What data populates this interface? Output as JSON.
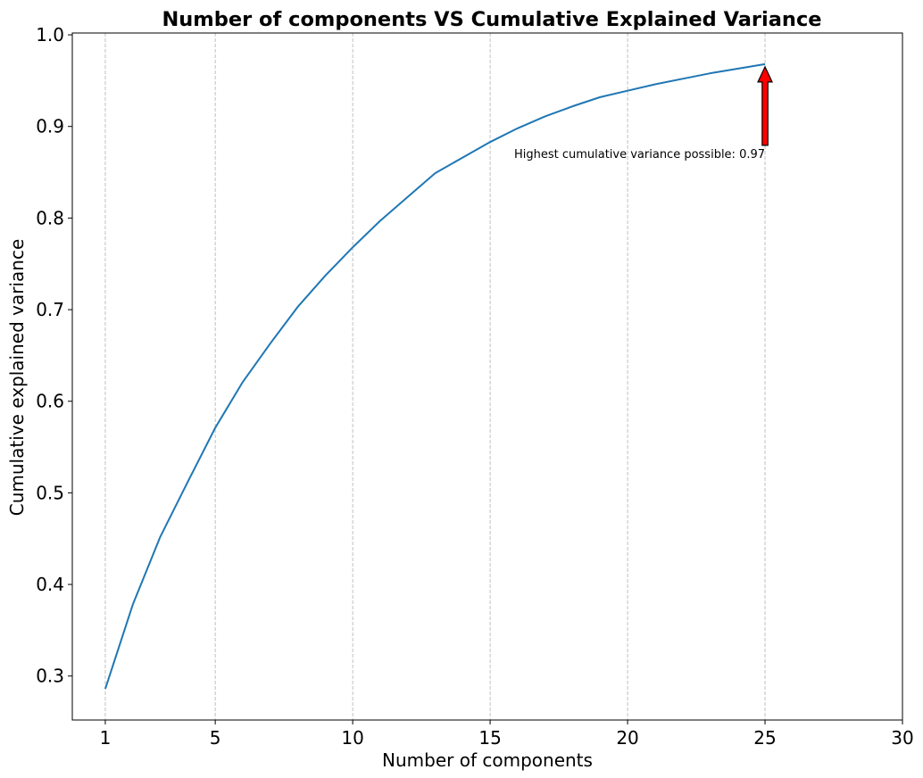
{
  "chart_data": {
    "type": "line",
    "title": "Number of components VS Cumulative Explained Variance",
    "xlabel": "Number of components",
    "ylabel": "Cumulative explained variance",
    "xlim": [
      -0.2,
      30
    ],
    "ylim": [
      0.252,
      1.002
    ],
    "xticks": [
      1,
      5,
      10,
      15,
      20,
      25,
      30
    ],
    "xtick_labels": [
      "1",
      "5",
      "10",
      "15",
      "20",
      "25",
      "30"
    ],
    "yticks": [
      0.3,
      0.4,
      0.5,
      0.6,
      0.7,
      0.8,
      0.9,
      1.0
    ],
    "ytick_labels": [
      "0.3",
      "0.4",
      "0.5",
      "0.6",
      "0.7",
      "0.8",
      "0.9",
      "1.0"
    ],
    "grid": "x-axis dashed",
    "series": [
      {
        "color": "#1f77b4",
        "x": [
          1,
          2,
          3,
          4,
          5,
          6,
          7,
          8,
          9,
          10,
          11,
          12,
          13,
          14,
          15,
          16,
          17,
          18,
          19,
          20,
          21,
          22,
          23,
          24,
          25
        ],
        "values": [
          0.286,
          0.378,
          0.452,
          0.512,
          0.571,
          0.621,
          0.663,
          0.703,
          0.737,
          0.768,
          0.797,
          0.823,
          0.849,
          0.866,
          0.883,
          0.898,
          0.911,
          0.922,
          0.932,
          0.939,
          0.946,
          0.952,
          0.958,
          0.963,
          0.968
        ]
      }
    ],
    "annotation": {
      "text": "Highest cumulative variance possible:  0.97",
      "x": 25,
      "y": 0.968,
      "arrow_color": "#ff0000"
    }
  }
}
